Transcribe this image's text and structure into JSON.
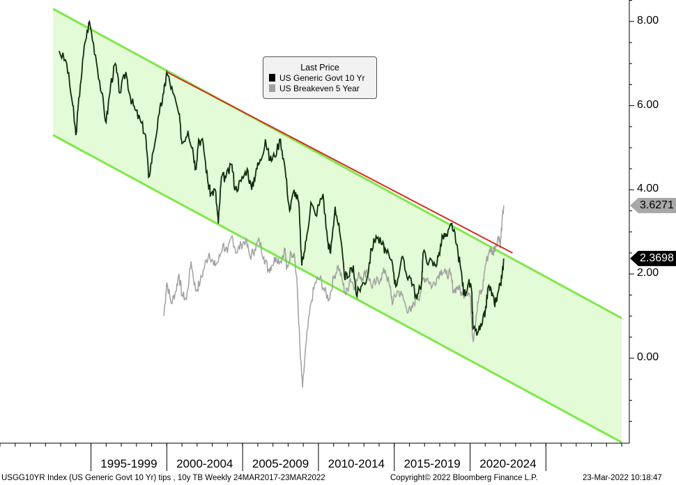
{
  "chart_data": {
    "type": "line",
    "legend": {
      "title": "Last Price",
      "placement": "top-center"
    },
    "series": [
      {
        "name": "US Generic Govt 10 Yr",
        "color": "#000000",
        "last_value": "2.3698",
        "points": [
          [
            1992.9,
            7.3
          ],
          [
            1993.4,
            7.0
          ],
          [
            1993.8,
            6.0
          ],
          [
            1994.0,
            5.3
          ],
          [
            1994.3,
            6.5
          ],
          [
            1994.6,
            7.5
          ],
          [
            1994.9,
            8.0
          ],
          [
            1995.3,
            7.2
          ],
          [
            1995.7,
            6.3
          ],
          [
            1996.0,
            5.6
          ],
          [
            1996.3,
            6.5
          ],
          [
            1996.6,
            7.0
          ],
          [
            1996.9,
            6.3
          ],
          [
            1997.3,
            6.8
          ],
          [
            1997.6,
            6.2
          ],
          [
            1997.9,
            5.9
          ],
          [
            1998.3,
            5.6
          ],
          [
            1998.6,
            5.3
          ],
          [
            1998.8,
            4.3
          ],
          [
            1999.1,
            4.9
          ],
          [
            1999.5,
            5.8
          ],
          [
            1999.8,
            6.3
          ],
          [
            2000.0,
            6.8
          ],
          [
            2000.4,
            6.3
          ],
          [
            2000.8,
            5.8
          ],
          [
            2001.0,
            5.1
          ],
          [
            2001.4,
            5.4
          ],
          [
            2001.7,
            5.0
          ],
          [
            2001.9,
            4.5
          ],
          [
            2002.1,
            5.2
          ],
          [
            2002.4,
            5.1
          ],
          [
            2002.7,
            4.2
          ],
          [
            2002.9,
            3.9
          ],
          [
            2003.2,
            4.0
          ],
          [
            2003.4,
            3.2
          ],
          [
            2003.6,
            4.3
          ],
          [
            2003.9,
            4.3
          ],
          [
            2004.3,
            4.6
          ],
          [
            2004.5,
            4.0
          ],
          [
            2004.9,
            4.2
          ],
          [
            2005.3,
            4.5
          ],
          [
            2005.6,
            4.0
          ],
          [
            2005.9,
            4.5
          ],
          [
            2006.2,
            4.7
          ],
          [
            2006.5,
            5.2
          ],
          [
            2006.8,
            4.7
          ],
          [
            2007.1,
            4.8
          ],
          [
            2007.5,
            5.2
          ],
          [
            2007.8,
            4.5
          ],
          [
            2008.1,
            3.5
          ],
          [
            2008.4,
            4.0
          ],
          [
            2008.7,
            3.7
          ],
          [
            2008.9,
            2.2
          ],
          [
            2009.2,
            2.8
          ],
          [
            2009.5,
            3.7
          ],
          [
            2009.8,
            3.4
          ],
          [
            2010.3,
            3.9
          ],
          [
            2010.6,
            2.8
          ],
          [
            2010.8,
            2.5
          ],
          [
            2011.1,
            3.6
          ],
          [
            2011.4,
            3.0
          ],
          [
            2011.7,
            2.0
          ],
          [
            2011.9,
            1.9
          ],
          [
            2012.3,
            2.2
          ],
          [
            2012.5,
            1.5
          ],
          [
            2012.8,
            1.7
          ],
          [
            2013.2,
            1.9
          ],
          [
            2013.5,
            2.6
          ],
          [
            2013.8,
            2.9
          ],
          [
            2014.2,
            2.7
          ],
          [
            2014.5,
            2.5
          ],
          [
            2014.9,
            2.2
          ],
          [
            2015.1,
            1.7
          ],
          [
            2015.5,
            2.4
          ],
          [
            2015.8,
            2.0
          ],
          [
            2016.1,
            1.9
          ],
          [
            2016.5,
            1.4
          ],
          [
            2016.8,
            1.8
          ],
          [
            2016.9,
            2.5
          ],
          [
            2017.3,
            2.3
          ],
          [
            2017.7,
            2.2
          ],
          [
            2017.9,
            2.4
          ],
          [
            2018.2,
            2.9
          ],
          [
            2018.5,
            2.9
          ],
          [
            2018.8,
            3.2
          ],
          [
            2019.1,
            2.7
          ],
          [
            2019.4,
            2.1
          ],
          [
            2019.6,
            1.5
          ],
          [
            2019.9,
            1.8
          ],
          [
            2020.1,
            1.6
          ],
          [
            2020.2,
            0.7
          ],
          [
            2020.5,
            0.6
          ],
          [
            2020.8,
            0.8
          ],
          [
            2021.0,
            1.1
          ],
          [
            2021.2,
            1.7
          ],
          [
            2021.4,
            1.6
          ],
          [
            2021.6,
            1.3
          ],
          [
            2021.8,
            1.5
          ],
          [
            2022.0,
            1.8
          ],
          [
            2022.1,
            1.9
          ],
          [
            2022.22,
            2.37
          ]
        ]
      },
      {
        "name": "US Breakeven 5 Year",
        "color": "#a0a0a0",
        "last_value": "3.6271",
        "points": [
          [
            1999.8,
            1.0
          ],
          [
            2000.0,
            1.8
          ],
          [
            2000.3,
            1.3
          ],
          [
            2000.6,
            1.6
          ],
          [
            2000.8,
            2.0
          ],
          [
            2001.0,
            1.5
          ],
          [
            2001.3,
            1.4
          ],
          [
            2001.6,
            2.3
          ],
          [
            2001.9,
            1.6
          ],
          [
            2002.2,
            1.8
          ],
          [
            2002.5,
            2.2
          ],
          [
            2002.8,
            2.5
          ],
          [
            2003.1,
            2.2
          ],
          [
            2003.4,
            2.3
          ],
          [
            2003.7,
            2.7
          ],
          [
            2004.0,
            2.5
          ],
          [
            2004.3,
            2.9
          ],
          [
            2004.6,
            2.5
          ],
          [
            2004.9,
            2.7
          ],
          [
            2005.2,
            2.8
          ],
          [
            2005.5,
            2.4
          ],
          [
            2005.8,
            2.6
          ],
          [
            2006.1,
            2.8
          ],
          [
            2006.4,
            2.4
          ],
          [
            2006.7,
            2.1
          ],
          [
            2006.9,
            2.2
          ],
          [
            2007.2,
            2.4
          ],
          [
            2007.5,
            2.3
          ],
          [
            2007.8,
            2.6
          ],
          [
            2007.9,
            2.1
          ],
          [
            2008.2,
            2.5
          ],
          [
            2008.4,
            2.5
          ],
          [
            2008.6,
            1.7
          ],
          [
            2008.8,
            0.1
          ],
          [
            2008.95,
            -0.7
          ],
          [
            2009.2,
            0.4
          ],
          [
            2009.5,
            1.3
          ],
          [
            2009.8,
            1.8
          ],
          [
            2010.1,
            1.9
          ],
          [
            2010.4,
            1.6
          ],
          [
            2010.7,
            1.4
          ],
          [
            2011.0,
            1.9
          ],
          [
            2011.3,
            2.2
          ],
          [
            2011.6,
            1.8
          ],
          [
            2011.8,
            1.5
          ],
          [
            2012.1,
            1.9
          ],
          [
            2012.4,
            1.7
          ],
          [
            2012.7,
            2.0
          ],
          [
            2012.9,
            1.9
          ],
          [
            2013.2,
            2.1
          ],
          [
            2013.5,
            1.7
          ],
          [
            2013.8,
            1.8
          ],
          [
            2014.1,
            1.9
          ],
          [
            2014.4,
            2.1
          ],
          [
            2014.7,
            1.7
          ],
          [
            2014.9,
            1.3
          ],
          [
            2015.2,
            1.6
          ],
          [
            2015.5,
            1.5
          ],
          [
            2015.8,
            1.2
          ],
          [
            2016.1,
            1.1
          ],
          [
            2016.4,
            1.4
          ],
          [
            2016.7,
            1.5
          ],
          [
            2016.9,
            1.9
          ],
          [
            2017.2,
            1.9
          ],
          [
            2017.5,
            1.7
          ],
          [
            2017.8,
            1.9
          ],
          [
            2018.1,
            2.1
          ],
          [
            2018.4,
            2.0
          ],
          [
            2018.7,
            2.0
          ],
          [
            2018.9,
            1.6
          ],
          [
            2019.2,
            1.7
          ],
          [
            2019.5,
            1.5
          ],
          [
            2019.8,
            1.6
          ],
          [
            2020.0,
            1.5
          ],
          [
            2020.2,
            0.4
          ],
          [
            2020.4,
            1.0
          ],
          [
            2020.6,
            1.5
          ],
          [
            2020.8,
            1.6
          ],
          [
            2021.0,
            2.2
          ],
          [
            2021.3,
            2.6
          ],
          [
            2021.5,
            2.5
          ],
          [
            2021.7,
            2.7
          ],
          [
            2021.9,
            2.9
          ],
          [
            2022.0,
            2.7
          ],
          [
            2022.1,
            3.2
          ],
          [
            2022.22,
            3.63
          ]
        ]
      }
    ],
    "channel": {
      "color": "#7ee84a",
      "fill": "#e3fbd6",
      "upper": [
        [
          1992.5,
          8.3
        ],
        [
          2030.0,
          0.95
        ]
      ],
      "lower": [
        [
          1992.5,
          5.3
        ],
        [
          2030.0,
          -2.0
        ]
      ]
    },
    "resistance_line": {
      "color": "#d32f1f",
      "points": [
        [
          2000.0,
          6.8
        ],
        [
          2022.8,
          2.5
        ]
      ]
    },
    "xlim": [
      1989.0,
      2030.5
    ],
    "ylim": [
      -2.0,
      8.5
    ],
    "yticks": [
      "8.00",
      "6.00",
      "4.00",
      "2.00",
      "0.00"
    ],
    "ytick_values": [
      8,
      6,
      4,
      2,
      0
    ],
    "x_categories": [
      "1995-1999",
      "2000-2004",
      "2005-2009",
      "2010-2014",
      "2015-2019",
      "2020-2024"
    ],
    "x_boundaries": [
      1995,
      2000,
      2005,
      2010,
      2015,
      2020,
      2025
    ],
    "grid": false
  },
  "footer": {
    "left": "USGG10YR Index (US Generic Govt 10 Yr) tips , 10y TB  Weekly 24MAR2017-23MAR2022",
    "middle": "Copyright© 2022 Bloomberg Finance L.P.",
    "right": "23-Mar-2022 10:18:47"
  }
}
